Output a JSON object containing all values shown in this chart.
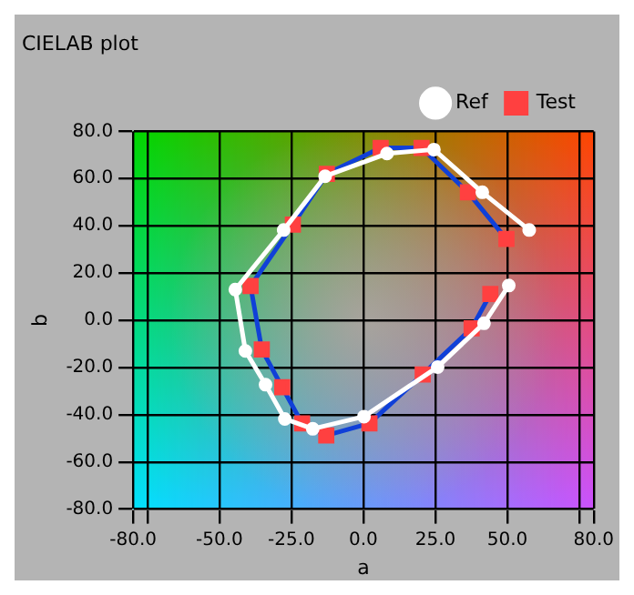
{
  "chart_data": {
    "type": "line",
    "title": "CIELAB plot",
    "xlabel": "a",
    "ylabel": "b",
    "xlim": [
      -80,
      80
    ],
    "xticks": [
      {
        "value": -80,
        "label": "-80.0"
      },
      {
        "value": -75,
        "label": null
      },
      {
        "value": -50,
        "label": "-50.0"
      },
      {
        "value": -25,
        "label": "-25.0"
      },
      {
        "value": 0,
        "label": "0.0"
      },
      {
        "value": 25,
        "label": "25.0"
      },
      {
        "value": 50,
        "label": "50.0"
      },
      {
        "value": 75,
        "label": null
      },
      {
        "value": 80,
        "label": "80.0"
      }
    ],
    "ylim": [
      -80,
      80
    ],
    "yticks": [
      {
        "value": -80,
        "label": "-80.0"
      },
      {
        "value": -60,
        "label": "-60.0"
      },
      {
        "value": -40,
        "label": "-40.0"
      },
      {
        "value": -20,
        "label": "-20.0"
      },
      {
        "value": 0,
        "label": "0.0"
      },
      {
        "value": 20,
        "label": "20.0"
      },
      {
        "value": 40,
        "label": "40.0"
      },
      {
        "value": 60,
        "label": "60.0"
      },
      {
        "value": 80,
        "label": "80.0"
      }
    ],
    "grid": true,
    "legend": "top right",
    "line_style": "solid",
    "series": [
      {
        "name": "Ref",
        "color": "#ffffff",
        "marker": "circle",
        "x": [
          57.6,
          41.3,
          24.5,
          8.2,
          -13.3,
          -27.7,
          -44.5,
          -41,
          -34,
          -27.3,
          -17.6,
          0.2,
          25.8,
          41.9,
          50.5
        ],
        "values": [
          38.2,
          54.2,
          72.3,
          70.6,
          61,
          38.2,
          13,
          -13,
          -27.3,
          -41.8,
          -46,
          -40.8,
          -19.8,
          -1.3,
          14.7
        ]
      },
      {
        "name": "Test",
        "color": "#1040d8",
        "marker": "square",
        "x": [
          49.7,
          36.3,
          20.2,
          6,
          -12.7,
          -24.5,
          -39.2,
          -35.3,
          -28.2,
          -21.3,
          -12.9,
          2.1,
          20.6,
          37.6,
          44.1
        ],
        "values": [
          34.4,
          54.2,
          73,
          73,
          62,
          40.5,
          14.5,
          -12.4,
          -28.4,
          -43.7,
          -48.8,
          -43.7,
          -23,
          -3.4,
          11.1
        ]
      }
    ]
  }
}
